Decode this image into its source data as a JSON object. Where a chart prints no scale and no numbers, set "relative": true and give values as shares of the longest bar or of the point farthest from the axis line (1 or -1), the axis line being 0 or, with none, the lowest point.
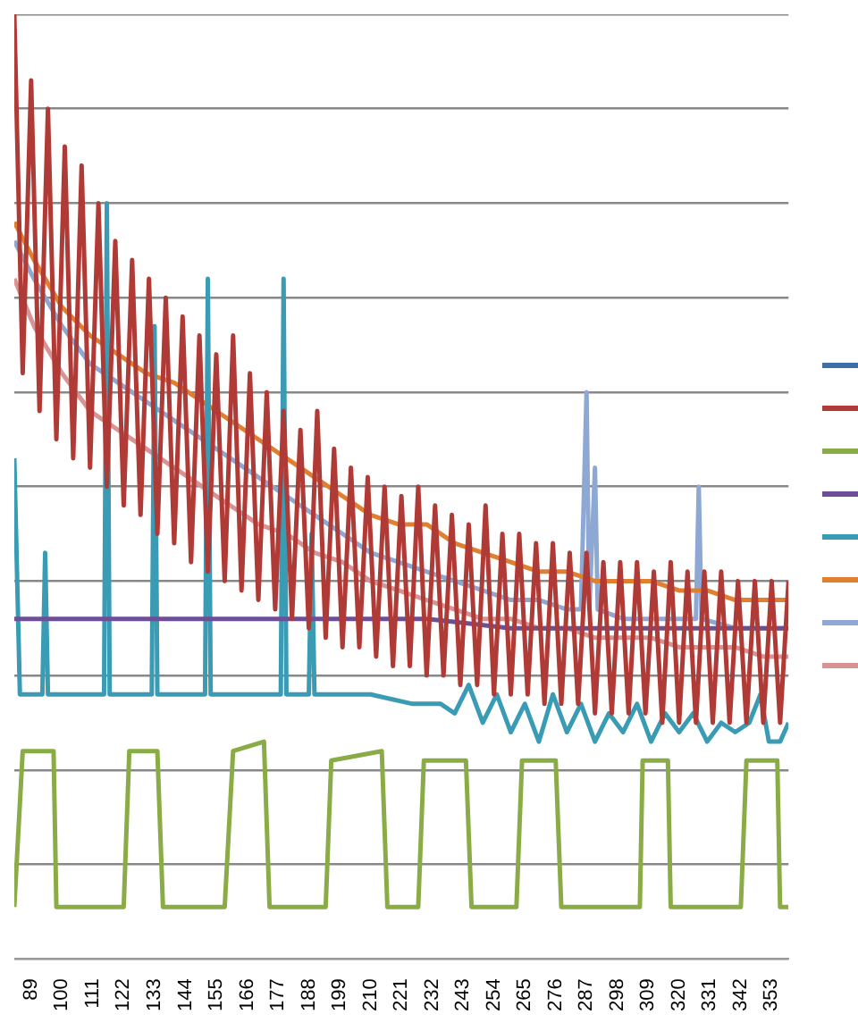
{
  "chart_data": {
    "type": "line",
    "relative": true,
    "grid": "y",
    "marker": "none",
    "line_style": "solid",
    "xlim": [
      83,
      359
    ],
    "xticks": [
      89,
      100,
      111,
      122,
      133,
      144,
      155,
      166,
      177,
      188,
      199,
      210,
      221,
      232,
      243,
      254,
      265,
      276,
      287,
      298,
      309,
      320,
      331,
      342,
      353
    ],
    "series": [
      {
        "color": "#3f6ea8"
      },
      {
        "color": "#b03a36",
        "x": [
          83,
          86,
          89,
          92,
          95,
          98,
          101,
          104,
          107,
          110,
          113,
          116,
          119,
          122,
          125,
          128,
          131,
          134,
          137,
          140,
          143,
          146,
          149,
          152,
          155,
          158,
          161,
          164,
          167,
          170,
          173,
          176,
          179,
          182,
          185,
          188,
          191,
          194,
          197,
          200,
          203,
          206,
          209,
          212,
          215,
          218,
          221,
          224,
          227,
          230,
          233,
          236,
          239,
          242,
          245,
          248,
          251,
          254,
          257,
          260,
          263,
          266,
          269,
          272,
          275,
          278,
          281,
          284,
          287,
          290,
          293,
          296,
          299,
          302,
          305,
          308,
          311,
          314,
          317,
          320,
          323,
          326,
          329,
          332,
          335,
          338,
          341,
          344,
          347,
          350,
          353,
          356,
          359
        ],
        "values": [
          1.0,
          0.62,
          0.93,
          0.58,
          0.9,
          0.55,
          0.86,
          0.53,
          0.84,
          0.52,
          0.8,
          0.5,
          0.76,
          0.48,
          0.74,
          0.47,
          0.72,
          0.45,
          0.7,
          0.44,
          0.68,
          0.42,
          0.66,
          0.41,
          0.64,
          0.4,
          0.66,
          0.39,
          0.62,
          0.38,
          0.6,
          0.37,
          0.58,
          0.36,
          0.56,
          0.35,
          0.58,
          0.34,
          0.54,
          0.33,
          0.52,
          0.33,
          0.51,
          0.32,
          0.5,
          0.31,
          0.49,
          0.31,
          0.5,
          0.3,
          0.48,
          0.3,
          0.47,
          0.29,
          0.46,
          0.29,
          0.48,
          0.28,
          0.45,
          0.28,
          0.45,
          0.28,
          0.44,
          0.27,
          0.44,
          0.27,
          0.43,
          0.27,
          0.43,
          0.26,
          0.42,
          0.26,
          0.42,
          0.26,
          0.42,
          0.26,
          0.41,
          0.25,
          0.42,
          0.25,
          0.41,
          0.25,
          0.41,
          0.25,
          0.41,
          0.25,
          0.4,
          0.25,
          0.4,
          0.25,
          0.4,
          0.25,
          0.4
        ]
      },
      {
        "color": "#8aac47",
        "x": [
          83,
          86,
          97,
          98,
          122,
          124,
          134,
          136,
          158,
          161,
          172,
          174,
          194,
          196,
          214,
          216,
          227,
          229,
          244,
          246,
          262,
          264,
          276,
          278,
          306,
          307,
          316,
          317,
          342,
          344,
          355,
          356,
          359
        ],
        "values": [
          0.055,
          0.22,
          0.22,
          0.055,
          0.055,
          0.22,
          0.22,
          0.055,
          0.055,
          0.22,
          0.23,
          0.055,
          0.055,
          0.21,
          0.22,
          0.055,
          0.055,
          0.21,
          0.21,
          0.055,
          0.055,
          0.21,
          0.21,
          0.055,
          0.055,
          0.21,
          0.21,
          0.055,
          0.055,
          0.21,
          0.21,
          0.055,
          0.055
        ]
      },
      {
        "color": "#6c4f96",
        "x": [
          83,
          110,
          140,
          170,
          200,
          230,
          260,
          290,
          320,
          359
        ],
        "values": [
          0.36,
          0.36,
          0.36,
          0.36,
          0.36,
          0.36,
          0.35,
          0.35,
          0.35,
          0.35
        ]
      },
      {
        "color": "#3a9bb4",
        "x": [
          83,
          85,
          93,
          94,
          95,
          115,
          116,
          117,
          132,
          133,
          134,
          151,
          152,
          153,
          178,
          179,
          180,
          188,
          189,
          190,
          210,
          225,
          235,
          240,
          245,
          250,
          255,
          260,
          265,
          270,
          275,
          280,
          285,
          290,
          295,
          300,
          305,
          310,
          315,
          320,
          325,
          330,
          335,
          340,
          345,
          349,
          352,
          356,
          359
        ],
        "values": [
          0.53,
          0.28,
          0.28,
          0.43,
          0.28,
          0.28,
          0.8,
          0.28,
          0.28,
          0.67,
          0.28,
          0.28,
          0.72,
          0.28,
          0.28,
          0.72,
          0.28,
          0.28,
          0.45,
          0.28,
          0.28,
          0.27,
          0.27,
          0.26,
          0.29,
          0.25,
          0.28,
          0.24,
          0.27,
          0.23,
          0.28,
          0.24,
          0.27,
          0.23,
          0.26,
          0.24,
          0.27,
          0.23,
          0.26,
          0.24,
          0.26,
          0.23,
          0.25,
          0.24,
          0.25,
          0.28,
          0.23,
          0.23,
          0.25
        ]
      },
      {
        "color": "#e07f2f",
        "x": [
          83,
          90,
          100,
          110,
          120,
          130,
          140,
          150,
          160,
          170,
          180,
          190,
          200,
          210,
          220,
          230,
          240,
          250,
          260,
          270,
          280,
          290,
          300,
          310,
          320,
          330,
          340,
          350,
          359
        ],
        "values": [
          0.78,
          0.74,
          0.69,
          0.66,
          0.64,
          0.62,
          0.61,
          0.59,
          0.57,
          0.55,
          0.53,
          0.51,
          0.49,
          0.47,
          0.46,
          0.46,
          0.44,
          0.43,
          0.42,
          0.41,
          0.41,
          0.4,
          0.4,
          0.4,
          0.39,
          0.39,
          0.38,
          0.38,
          0.38
        ]
      },
      {
        "color": "#8ea8d4",
        "x": [
          83,
          90,
          100,
          110,
          120,
          130,
          140,
          150,
          160,
          170,
          180,
          190,
          200,
          210,
          220,
          230,
          240,
          250,
          260,
          270,
          280,
          285,
          287,
          288,
          290,
          291,
          300,
          310,
          320,
          326,
          327,
          328,
          340,
          350,
          359
        ],
        "values": [
          0.76,
          0.72,
          0.67,
          0.63,
          0.61,
          0.59,
          0.57,
          0.55,
          0.53,
          0.51,
          0.49,
          0.47,
          0.45,
          0.43,
          0.42,
          0.41,
          0.4,
          0.39,
          0.38,
          0.38,
          0.37,
          0.37,
          0.6,
          0.37,
          0.52,
          0.37,
          0.36,
          0.36,
          0.36,
          0.36,
          0.5,
          0.36,
          0.35,
          0.35,
          0.35
        ]
      },
      {
        "color": "#d99392",
        "x": [
          83,
          90,
          100,
          110,
          120,
          130,
          140,
          150,
          160,
          170,
          180,
          190,
          200,
          210,
          220,
          230,
          240,
          250,
          260,
          270,
          280,
          290,
          300,
          310,
          320,
          330,
          340,
          350,
          359
        ],
        "values": [
          0.72,
          0.67,
          0.62,
          0.58,
          0.56,
          0.54,
          0.52,
          0.5,
          0.48,
          0.46,
          0.45,
          0.43,
          0.42,
          0.4,
          0.39,
          0.38,
          0.37,
          0.36,
          0.36,
          0.35,
          0.35,
          0.34,
          0.34,
          0.34,
          0.33,
          0.33,
          0.33,
          0.32,
          0.32
        ]
      }
    ]
  }
}
